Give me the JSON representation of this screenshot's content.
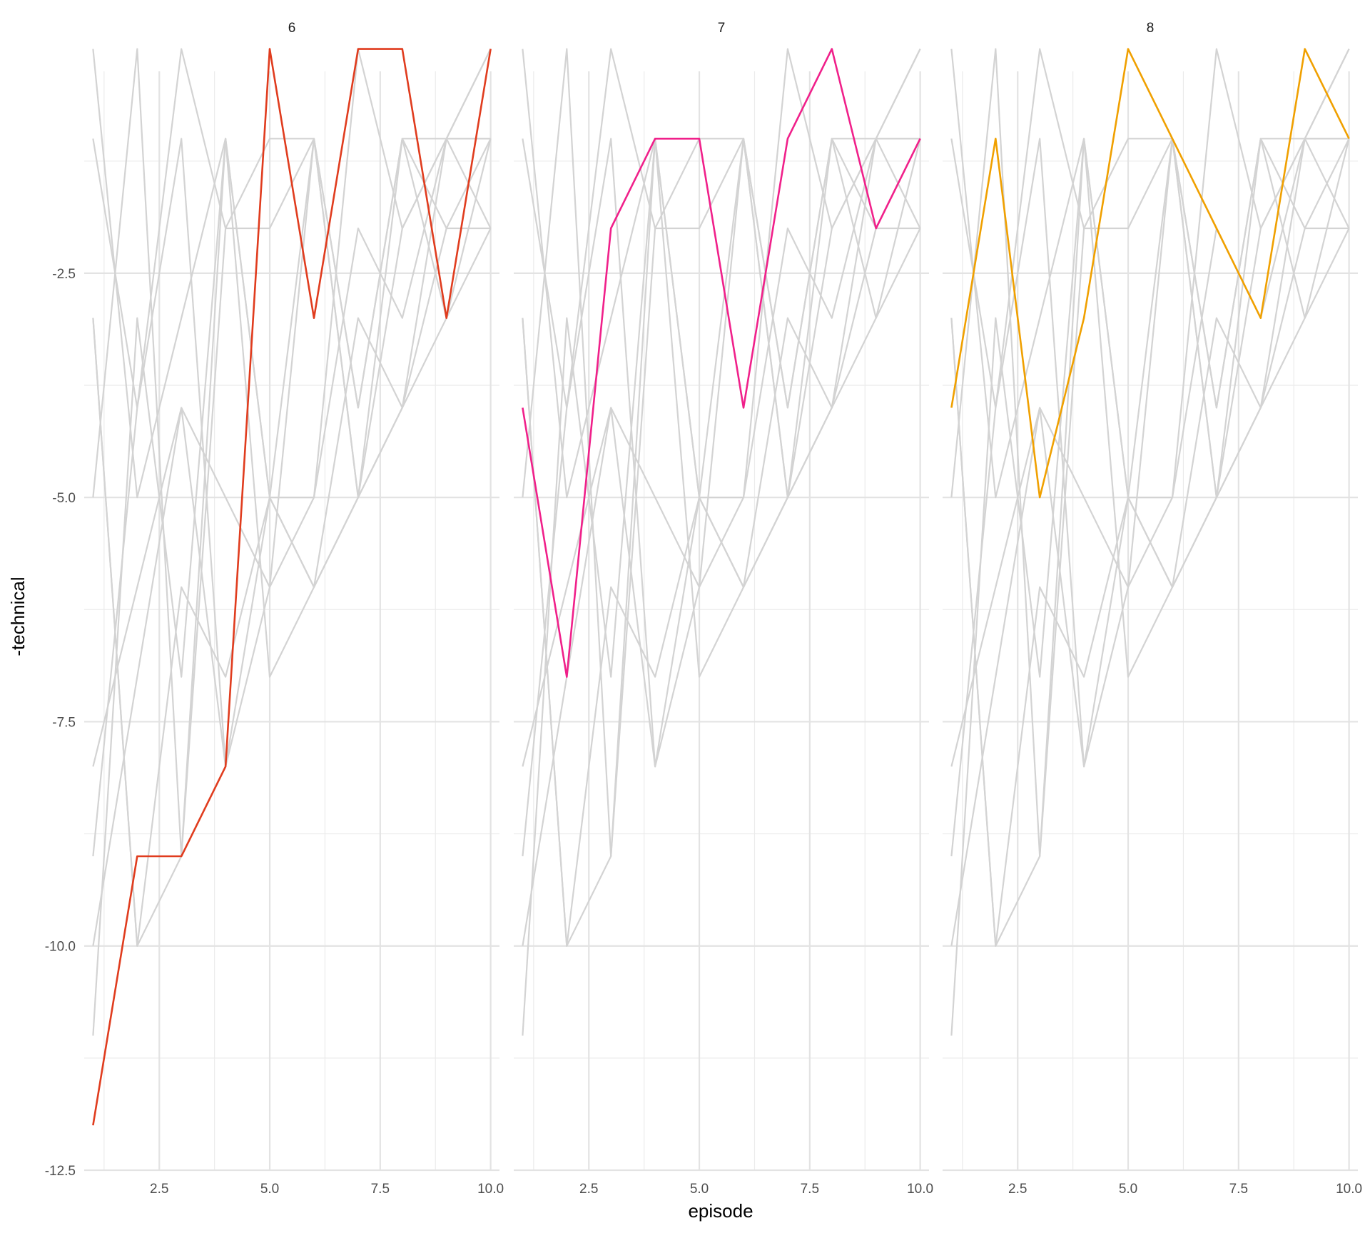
{
  "chart_data": {
    "type": "line",
    "facet_variable": "series",
    "panels": [
      "6",
      "7",
      "8"
    ],
    "xlabel": "episode",
    "ylabel": "-technical",
    "xlim": [
      0.8,
      10.2
    ],
    "ylim": [
      -12.5,
      -0.25
    ],
    "x_ticks": [
      "2.5",
      "5.0",
      "7.5",
      "10.0"
    ],
    "y_ticks": [
      "-2.5",
      "-5.0",
      "-7.5",
      "-10.0",
      "-12.5"
    ],
    "grid": true,
    "legend": "none",
    "background_color": "#d3d3d3",
    "highlight_colors": {
      "6": "#e03c1e",
      "7": "#f0208a",
      "8": "#f0a000"
    },
    "highlight_series": {
      "6": {
        "x": [
          1,
          2,
          3,
          4,
          5,
          6,
          7,
          8,
          9,
          10
        ],
        "y": [
          -12,
          -9,
          -9,
          -8,
          0,
          -3,
          0,
          0,
          -3,
          0
        ]
      },
      "7": {
        "x": [
          1,
          2,
          3,
          4,
          5,
          6,
          7,
          8,
          9,
          10
        ],
        "y": [
          -4,
          -7,
          -2,
          -1,
          -1,
          -4,
          -1,
          0,
          -2,
          -1
        ]
      },
      "8": {
        "x": [
          1,
          2,
          3,
          4,
          5,
          6,
          7,
          8,
          9,
          10
        ],
        "y": [
          -4,
          -1,
          -5,
          -3,
          0,
          -1,
          -2,
          -3,
          0,
          -1
        ]
      }
    },
    "background_series": [
      {
        "x": [
          1,
          2,
          3,
          4,
          5,
          6,
          7,
          8,
          9,
          10
        ],
        "y": [
          0,
          -5,
          -3,
          -1,
          -7,
          -6,
          -3,
          -4,
          -2,
          -1
        ]
      },
      {
        "x": [
          1,
          2,
          3,
          4,
          5,
          6,
          7,
          8,
          9,
          10
        ],
        "y": [
          -8,
          -6,
          -4,
          -8,
          -5,
          -5,
          -2,
          -3,
          -1,
          -1
        ]
      },
      {
        "x": [
          1,
          2,
          3,
          4,
          5,
          6,
          7,
          8,
          9,
          10
        ],
        "y": [
          -3,
          -10,
          -9,
          -1,
          -5,
          -6,
          -5,
          -2,
          -1,
          0
        ]
      },
      {
        "x": [
          1,
          2,
          3,
          4,
          5,
          6,
          7,
          8,
          9,
          10
        ],
        "y": [
          -11,
          -3,
          -7,
          -1,
          -5,
          -1,
          -4,
          -1,
          -3,
          -2
        ]
      },
      {
        "x": [
          1,
          2,
          3,
          4,
          5,
          6,
          7,
          8,
          9,
          10
        ],
        "y": [
          -9,
          -4,
          0,
          -2,
          -2,
          -1,
          -5,
          -1,
          -1,
          0
        ]
      },
      {
        "x": [
          1,
          2,
          3,
          4,
          5,
          6,
          7,
          8,
          9,
          10
        ],
        "y": [
          -10,
          -7,
          -4,
          -5,
          -6,
          -5,
          0,
          -2,
          -1,
          -2
        ]
      },
      {
        "x": [
          1,
          2,
          3,
          4,
          5,
          6,
          7,
          8,
          9,
          10
        ],
        "y": [
          -3,
          -10,
          -6,
          -7,
          -5,
          -6,
          -5,
          -4,
          -1,
          -1
        ]
      },
      {
        "x": [
          1,
          2,
          3,
          4,
          5,
          6,
          7,
          8,
          9,
          10
        ],
        "y": [
          -1,
          -4,
          -1,
          -8,
          -6,
          -1,
          -5,
          -4,
          -3,
          -1
        ]
      },
      {
        "x": [
          1,
          2,
          3,
          4,
          5,
          6,
          7,
          8,
          9,
          10
        ],
        "y": [
          -5,
          0,
          -9,
          -2,
          -1,
          -1,
          -4,
          -1,
          -2,
          -2
        ]
      }
    ]
  }
}
